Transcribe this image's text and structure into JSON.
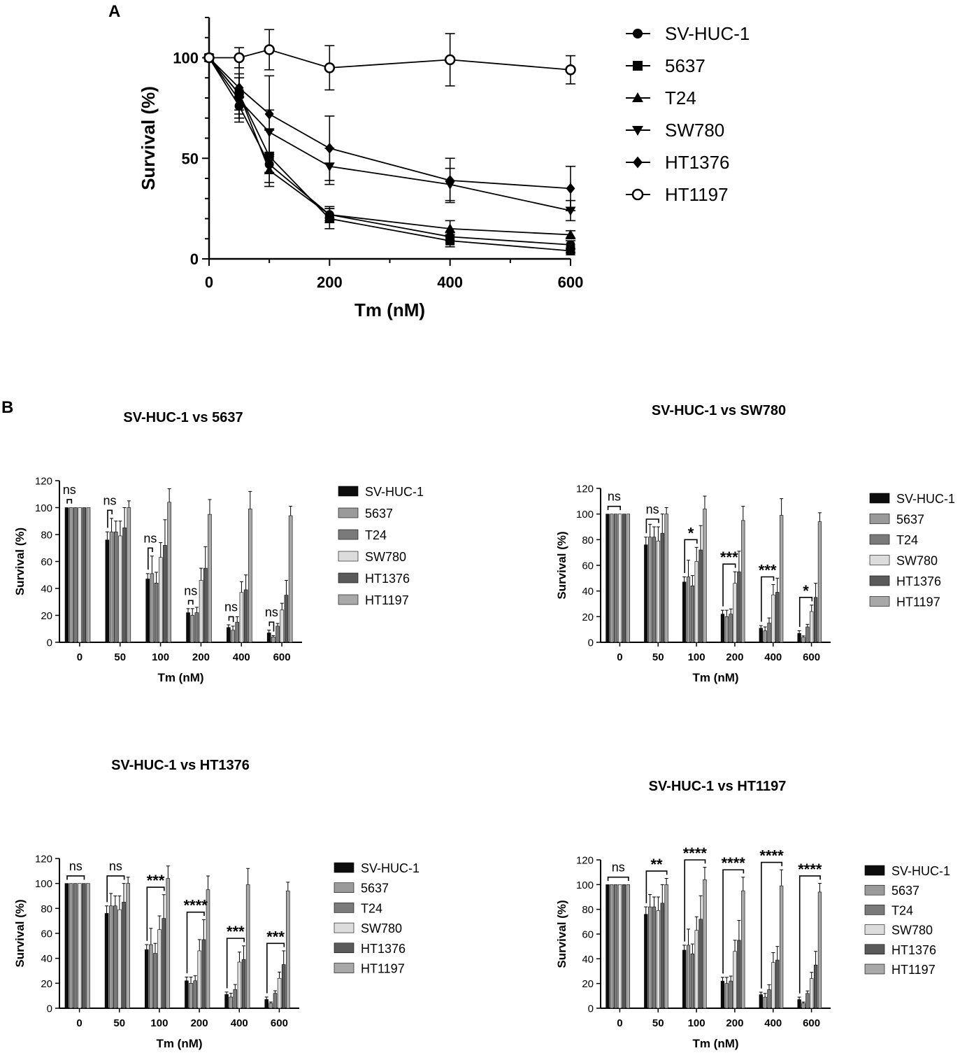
{
  "panels": {
    "a_label": "A",
    "b_label": "B"
  },
  "colors": {
    "SV-HUC-1": "#0d0d0d",
    "5637": "#9a9a9a",
    "T24": "#7a7a7a",
    "SW780": "#dcdcdc",
    "HT1376": "#5a5a5a",
    "HT1197": "#a8a8a8"
  },
  "chart_data": [
    {
      "id": "A",
      "type": "line",
      "title": "",
      "xlabel": "Tm (nM)",
      "ylabel": "Survival (%)",
      "xlim": [
        0,
        600
      ],
      "ylim": [
        0,
        120
      ],
      "xticks": [
        0,
        200,
        400,
        600
      ],
      "yticks": [
        0,
        50,
        100
      ],
      "x": [
        0,
        50,
        100,
        200,
        400,
        600
      ],
      "legend": "right",
      "series": [
        {
          "name": "SV-HUC-1",
          "marker": "circle",
          "values": [
            100,
            76,
            47,
            22,
            11,
            7
          ],
          "err": [
            0,
            6,
            4,
            3,
            2,
            2
          ]
        },
        {
          "name": "5637",
          "marker": "square",
          "values": [
            100,
            82,
            51,
            20,
            9,
            4
          ],
          "err": [
            0,
            10,
            13,
            5,
            3,
            1
          ]
        },
        {
          "name": "T24",
          "marker": "triangle-up",
          "values": [
            100,
            82,
            44,
            22,
            15,
            12
          ],
          "err": [
            0,
            8,
            8,
            4,
            4,
            2
          ]
        },
        {
          "name": "SW780",
          "marker": "triangle-down",
          "values": [
            100,
            79,
            63,
            46,
            37,
            24
          ],
          "err": [
            0,
            11,
            11,
            9,
            8,
            5
          ]
        },
        {
          "name": "HT1376",
          "marker": "diamond",
          "values": [
            100,
            85,
            72,
            55,
            39,
            35
          ],
          "err": [
            0,
            15,
            19,
            16,
            11,
            11
          ]
        },
        {
          "name": "HT1197",
          "marker": "circle-open",
          "values": [
            100,
            100,
            104,
            95,
            99,
            94
          ],
          "err": [
            0,
            5,
            10,
            11,
            13,
            7
          ]
        }
      ]
    },
    {
      "id": "B1",
      "type": "bar",
      "title": "SV-HUC-1 vs 5637",
      "xlabel": "Tm (nM)",
      "ylabel": "Survival (%)",
      "ylim": [
        0,
        120
      ],
      "yticks": [
        0,
        20,
        40,
        60,
        80,
        100,
        120
      ],
      "categories": [
        "0",
        "50",
        "100",
        "200",
        "400",
        "600"
      ],
      "compare": "5637",
      "significance": [
        "ns",
        "ns",
        "ns",
        "ns",
        "ns",
        "ns"
      ],
      "legend": "right"
    },
    {
      "id": "B2",
      "type": "bar",
      "title": "SV-HUC-1 vs SW780",
      "xlabel": "Tm (nM)",
      "ylabel": "Survival (%)",
      "ylim": [
        0,
        120
      ],
      "yticks": [
        0,
        20,
        40,
        60,
        80,
        100,
        120
      ],
      "categories": [
        "0",
        "50",
        "100",
        "200",
        "400",
        "600"
      ],
      "compare": "SW780",
      "significance": [
        "ns",
        "ns",
        "*",
        "***",
        "***",
        "*"
      ],
      "legend": "right"
    },
    {
      "id": "B3",
      "type": "bar",
      "title": "SV-HUC-1 vs HT1376",
      "xlabel": "Tm (nM)",
      "ylabel": "Survival (%)",
      "ylim": [
        0,
        120
      ],
      "yticks": [
        0,
        20,
        40,
        60,
        80,
        100,
        120
      ],
      "categories": [
        "0",
        "50",
        "100",
        "200",
        "400",
        "600"
      ],
      "compare": "HT1376",
      "significance": [
        "ns",
        "ns",
        "***",
        "****",
        "***",
        "***"
      ],
      "legend": "right"
    },
    {
      "id": "B4",
      "type": "bar",
      "title": "SV-HUC-1 vs HT1197",
      "xlabel": "Tm (nM)",
      "ylabel": "Survival (%)",
      "ylim": [
        0,
        120
      ],
      "yticks": [
        0,
        20,
        40,
        60,
        80,
        100,
        120
      ],
      "categories": [
        "0",
        "50",
        "100",
        "200",
        "400",
        "600"
      ],
      "compare": "HT1197",
      "significance": [
        "ns",
        "**",
        "****",
        "****",
        "****",
        "****"
      ],
      "legend": "right"
    }
  ]
}
